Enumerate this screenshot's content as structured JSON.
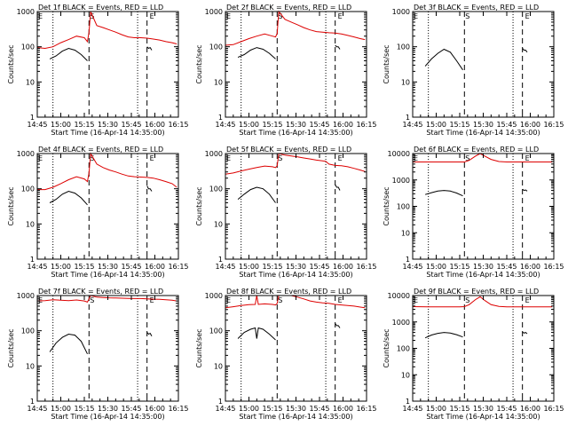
{
  "figure": {
    "xlabel": "Start Time (16-Apr-14 14:35:00)",
    "ylabel": "Counts/sec",
    "xlim": [
      10,
      100
    ],
    "xtick_values": [
      10,
      25,
      40,
      55,
      70,
      85,
      100
    ],
    "xtick_labels": [
      "14:45",
      "15:00",
      "15:15",
      "15:30",
      "15:45",
      "16:00",
      "16:15"
    ],
    "dotted_lines_x": [
      20,
      74
    ],
    "dashed_lines_x": [
      43,
      80
    ],
    "colors": {
      "events": "#000000",
      "lld": "#dd0000",
      "axes": "#000000"
    }
  },
  "chart_data": [
    {
      "type": "line",
      "title": "Det 1f BLACK = Events, RED = LLD",
      "ylim": [
        1,
        1000
      ],
      "yscale": "log",
      "yticks": [
        "1",
        "10",
        "100",
        "1000"
      ],
      "markers": [
        "E",
        "S",
        "E"
      ],
      "series": [
        {
          "name": "LLD",
          "color": "#dd0000",
          "x": [
            10,
            15,
            20,
            25,
            30,
            35,
            40,
            42,
            43,
            44,
            48,
            52,
            56,
            60,
            64,
            68,
            72,
            76,
            80,
            84,
            88,
            92,
            96,
            99
          ],
          "y": [
            95,
            90,
            100,
            130,
            160,
            200,
            180,
            140,
            260,
            1000,
            400,
            350,
            300,
            260,
            220,
            190,
            180,
            180,
            175,
            165,
            155,
            140,
            130,
            120
          ]
        },
        {
          "name": "Events",
          "color": "#000000",
          "x": [
            18,
            22,
            26,
            30,
            34,
            38,
            42
          ],
          "y": [
            45,
            55,
            75,
            90,
            80,
            60,
            40
          ]
        },
        {
          "name": "Events",
          "color": "#000000",
          "x": [
            80,
            81,
            82,
            83
          ],
          "y": [
            100,
            90,
            95,
            80
          ]
        }
      ]
    },
    {
      "type": "line",
      "title": "Det 2f BLACK = Events, RED = LLD",
      "ylim": [
        1,
        1000
      ],
      "yscale": "log",
      "yticks": [
        "1",
        "10",
        "100",
        "1000"
      ],
      "markers": [
        "E",
        "S",
        "E"
      ],
      "series": [
        {
          "name": "LLD",
          "color": "#dd0000",
          "x": [
            10,
            15,
            20,
            25,
            30,
            35,
            40,
            42,
            43,
            44,
            48,
            52,
            56,
            60,
            64,
            68,
            72,
            76,
            80,
            84,
            88,
            92,
            96,
            99
          ],
          "y": [
            110,
            115,
            140,
            170,
            200,
            230,
            200,
            190,
            240,
            1000,
            600,
            500,
            420,
            350,
            300,
            270,
            260,
            250,
            245,
            230,
            210,
            190,
            170,
            160
          ]
        },
        {
          "name": "Events",
          "color": "#000000",
          "x": [
            18,
            22,
            26,
            30,
            34,
            38,
            42
          ],
          "y": [
            50,
            60,
            80,
            95,
            85,
            65,
            45
          ]
        },
        {
          "name": "Events",
          "color": "#000000",
          "x": [
            80,
            81,
            82,
            83
          ],
          "y": [
            110,
            100,
            100,
            85
          ]
        }
      ]
    },
    {
      "type": "line",
      "title": "Det 3f BLACK = Events, RED = LLD",
      "ylim": [
        1,
        1000
      ],
      "yscale": "log",
      "yticks": [
        "1",
        "10",
        "100",
        "1000"
      ],
      "markers": [
        "E",
        "S",
        "E"
      ],
      "series": [
        {
          "name": "LLD",
          "color": "#dd0000",
          "x": [
            10,
            30,
            50,
            70,
            80
          ],
          "y": [
            1000,
            1000,
            1000,
            1000,
            1000
          ]
        },
        {
          "name": "Events",
          "color": "#000000",
          "x": [
            18,
            22,
            26,
            30,
            34,
            38,
            42
          ],
          "y": [
            28,
            45,
            65,
            85,
            70,
            40,
            22
          ]
        },
        {
          "name": "Events",
          "color": "#000000",
          "x": [
            80,
            81,
            82,
            83
          ],
          "y": [
            90,
            80,
            80,
            70
          ]
        }
      ]
    },
    {
      "type": "line",
      "title": "Det 4f BLACK = Events, RED = LLD",
      "ylim": [
        1,
        1000
      ],
      "yscale": "log",
      "yticks": [
        "1",
        "10",
        "100",
        "1000"
      ],
      "markers": [
        "E",
        "S",
        "E"
      ],
      "series": [
        {
          "name": "LLD",
          "color": "#dd0000",
          "x": [
            10,
            15,
            20,
            25,
            30,
            35,
            40,
            42,
            43,
            44,
            48,
            52,
            56,
            60,
            64,
            68,
            72,
            76,
            80,
            84,
            88,
            92,
            96,
            99
          ],
          "y": [
            95,
            95,
            110,
            140,
            180,
            220,
            190,
            160,
            280,
            1000,
            500,
            400,
            340,
            300,
            260,
            230,
            220,
            215,
            210,
            200,
            180,
            160,
            140,
            110
          ]
        },
        {
          "name": "Events",
          "color": "#000000",
          "x": [
            18,
            22,
            26,
            30,
            34,
            38,
            42
          ],
          "y": [
            40,
            50,
            70,
            85,
            75,
            55,
            35
          ]
        },
        {
          "name": "Events",
          "color": "#000000",
          "x": [
            80,
            81,
            82,
            83
          ],
          "y": [
            120,
            100,
            100,
            85
          ]
        }
      ]
    },
    {
      "type": "line",
      "title": "Det 5f BLACK = Events, RED = LLD",
      "ylim": [
        1,
        1000
      ],
      "yscale": "log",
      "yticks": [
        "1",
        "10",
        "100",
        "1000"
      ],
      "markers": [
        "E",
        "S",
        "E"
      ],
      "series": [
        {
          "name": "LLD",
          "color": "#dd0000",
          "x": [
            10,
            15,
            20,
            25,
            30,
            35,
            40,
            42,
            43,
            44,
            48,
            52,
            56,
            60,
            64,
            68,
            72,
            74,
            76,
            80,
            84,
            88,
            92,
            96,
            99
          ],
          "y": [
            260,
            280,
            320,
            360,
            400,
            440,
            420,
            400,
            450,
            1000,
            900,
            850,
            800,
            750,
            700,
            650,
            620,
            600,
            500,
            460,
            450,
            420,
            380,
            340,
            310
          ]
        },
        {
          "name": "Events",
          "color": "#000000",
          "x": [
            18,
            22,
            26,
            30,
            34,
            38,
            42
          ],
          "y": [
            50,
            70,
            95,
            110,
            100,
            70,
            40
          ]
        },
        {
          "name": "Events",
          "color": "#000000",
          "x": [
            80,
            81,
            82,
            83
          ],
          "y": [
            130,
            110,
            110,
            90
          ]
        }
      ]
    },
    {
      "type": "line",
      "title": "Det 6f BLACK = Events, RED = LLD",
      "ylim": [
        1,
        10000
      ],
      "yscale": "log",
      "yticks": [
        "1",
        "10",
        "100",
        "1000",
        "10000"
      ],
      "markers": [
        "E",
        "S",
        "E"
      ],
      "series": [
        {
          "name": "LLD",
          "color": "#dd0000",
          "x": [
            10,
            20,
            30,
            40,
            43,
            46,
            50,
            53,
            56,
            60,
            65,
            70,
            80,
            90,
            99
          ],
          "y": [
            4800,
            4800,
            4800,
            4800,
            4800,
            5500,
            8000,
            10000,
            8000,
            6000,
            5000,
            4800,
            4800,
            4800,
            4800
          ]
        },
        {
          "name": "Events",
          "color": "#000000",
          "x": [
            18,
            22,
            26,
            30,
            34,
            38,
            42
          ],
          "y": [
            280,
            330,
            380,
            400,
            380,
            320,
            250
          ]
        },
        {
          "name": "Events",
          "color": "#000000",
          "x": [
            80,
            81,
            82,
            83
          ],
          "y": [
            450,
            400,
            420,
            380
          ]
        }
      ]
    },
    {
      "type": "line",
      "title": "Det 7f BLACK = Events, RED = LLD",
      "ylim": [
        1,
        1000
      ],
      "yscale": "log",
      "yticks": [
        "1",
        "10",
        "100",
        "1000"
      ],
      "markers": [
        "E",
        "S",
        "E"
      ],
      "series": [
        {
          "name": "LLD",
          "color": "#dd0000",
          "x": [
            10,
            15,
            20,
            25,
            30,
            35,
            40,
            42,
            43,
            44,
            48,
            52,
            56,
            60,
            64,
            68,
            72,
            76,
            80,
            84,
            88,
            92,
            96,
            99
          ],
          "y": [
            700,
            720,
            760,
            740,
            720,
            750,
            700,
            650,
            800,
            1000,
            900,
            880,
            860,
            850,
            840,
            830,
            820,
            820,
            800,
            790,
            780,
            760,
            740,
            700
          ]
        },
        {
          "name": "Events",
          "color": "#000000",
          "x": [
            18,
            22,
            26,
            30,
            34,
            38,
            42
          ],
          "y": [
            25,
            45,
            65,
            80,
            75,
            50,
            22
          ]
        },
        {
          "name": "Events",
          "color": "#000000",
          "x": [
            80,
            81,
            82,
            83
          ],
          "y": [
            90,
            80,
            85,
            70
          ]
        }
      ]
    },
    {
      "type": "line",
      "title": "Det 8f BLACK = Events, RED = LLD",
      "ylim": [
        1,
        1000
      ],
      "yscale": "log",
      "yticks": [
        "1",
        "10",
        "100",
        "1000"
      ],
      "markers": [
        "E",
        "S",
        "E"
      ],
      "series": [
        {
          "name": "LLD",
          "color": "#dd0000",
          "x": [
            10,
            15,
            20,
            25,
            29,
            30,
            31,
            35,
            40,
            42,
            43,
            44,
            48,
            52,
            56,
            60,
            64,
            68,
            72,
            76,
            80,
            84,
            88,
            92,
            96,
            99
          ],
          "y": [
            450,
            480,
            520,
            550,
            560,
            1000,
            560,
            580,
            560,
            540,
            600,
            1000,
            1000,
            1000,
            900,
            800,
            700,
            650,
            620,
            600,
            560,
            540,
            520,
            500,
            470,
            450
          ]
        },
        {
          "name": "Events",
          "color": "#000000",
          "x": [
            18,
            22,
            26,
            29,
            30,
            31,
            34,
            38,
            42
          ],
          "y": [
            60,
            90,
            110,
            120,
            60,
            120,
            110,
            80,
            55
          ]
        },
        {
          "name": "Events",
          "color": "#000000",
          "x": [
            80,
            81,
            82,
            83
          ],
          "y": [
            160,
            140,
            140,
            120
          ]
        }
      ]
    },
    {
      "type": "line",
      "title": "Det 9f BLACK = Events, RED = LLD",
      "ylim": [
        1,
        10000
      ],
      "yscale": "log",
      "yticks": [
        "1",
        "10",
        "100",
        "1000",
        "10000"
      ],
      "markers": [
        "E",
        "S",
        "E"
      ],
      "series": [
        {
          "name": "LLD",
          "color": "#dd0000",
          "x": [
            10,
            20,
            30,
            40,
            43,
            46,
            50,
            53,
            56,
            60,
            65,
            70,
            80,
            90,
            99
          ],
          "y": [
            3800,
            3700,
            3700,
            3700,
            3800,
            4500,
            7000,
            9000,
            6500,
            4500,
            3900,
            3700,
            3700,
            3700,
            3700
          ]
        },
        {
          "name": "Events",
          "color": "#000000",
          "x": [
            18,
            22,
            26,
            30,
            34,
            38,
            42
          ],
          "y": [
            250,
            320,
            370,
            400,
            380,
            330,
            270
          ]
        },
        {
          "name": "Events",
          "color": "#000000",
          "x": [
            80,
            81,
            82,
            83
          ],
          "y": [
            420,
            380,
            400,
            360
          ]
        }
      ]
    }
  ]
}
